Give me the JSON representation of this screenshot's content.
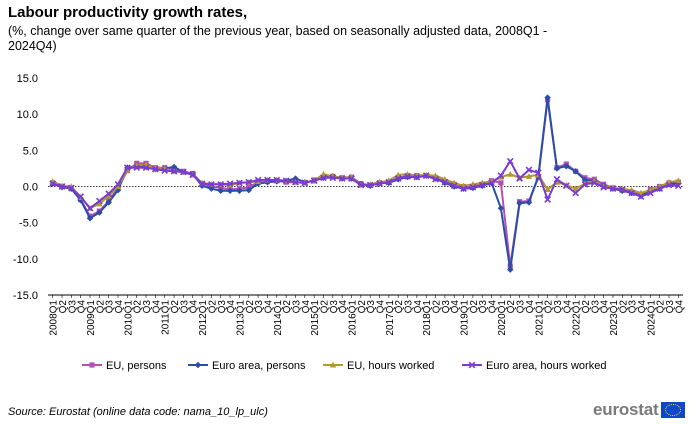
{
  "header": {
    "title": "Labour productivity growth rates,",
    "subtitle": "(%, change over same quarter of the previous year, based on seasonally adjusted data, 2008Q1 - 2024Q4)"
  },
  "footer": {
    "source_label": "Source:",
    "source_text": " Eurostat (online data code: nama_10_lp_ulc)",
    "logo_text": "eurostat"
  },
  "chart_data": {
    "type": "line",
    "title": "Labour productivity growth rates",
    "ylabel": "%",
    "ylim": [
      -15,
      15
    ],
    "yticks": [
      15.0,
      10.0,
      5.0,
      0.0,
      -5.0,
      -10.0,
      -15.0
    ],
    "ytick_labels": [
      "15.0",
      "10.0",
      "5.0",
      "0.0",
      "-5.0",
      "-10.0",
      "-15.0"
    ],
    "grid": false,
    "legend_position": "bottom",
    "categories": [
      "2008Q1",
      "2008Q2",
      "2008Q3",
      "2008Q4",
      "2009Q1",
      "2009Q2",
      "2009Q3",
      "2009Q4",
      "2010Q1",
      "2010Q2",
      "2010Q3",
      "2010Q4",
      "2011Q1",
      "2011Q2",
      "2011Q3",
      "2011Q4",
      "2012Q1",
      "2012Q2",
      "2012Q3",
      "2012Q4",
      "2013Q1",
      "2013Q2",
      "2013Q3",
      "2013Q4",
      "2014Q1",
      "2014Q2",
      "2014Q3",
      "2014Q4",
      "2015Q1",
      "2015Q2",
      "2015Q3",
      "2015Q4",
      "2016Q1",
      "2016Q2",
      "2016Q3",
      "2016Q4",
      "2017Q1",
      "2017Q2",
      "2017Q3",
      "2017Q4",
      "2018Q1",
      "2018Q2",
      "2018Q3",
      "2018Q4",
      "2019Q1",
      "2019Q2",
      "2019Q3",
      "2019Q4",
      "2020Q1",
      "2020Q2",
      "2020Q3",
      "2020Q4",
      "2021Q1",
      "2021Q2",
      "2021Q3",
      "2021Q4",
      "2022Q1",
      "2022Q2",
      "2022Q3",
      "2022Q4",
      "2023Q1",
      "2023Q2",
      "2023Q3",
      "2023Q4",
      "2024Q1",
      "2024Q2",
      "2024Q3",
      "2024Q4"
    ],
    "tick_labels": [
      "2008Q1",
      "Q2",
      "Q3",
      "Q4",
      "2009Q1",
      "Q2",
      "Q3",
      "Q4",
      "2010Q1",
      "Q2",
      "Q3",
      "Q4",
      "2011Q1",
      "Q2",
      "Q3",
      "Q4",
      "2012Q1",
      "Q2",
      "Q3",
      "Q4",
      "2013Q1",
      "Q2",
      "Q3",
      "Q4",
      "2014Q1",
      "Q2",
      "Q3",
      "Q4",
      "2015Q1",
      "Q2",
      "Q3",
      "Q4",
      "2016Q1",
      "Q2",
      "Q3",
      "Q4",
      "2017Q1",
      "Q2",
      "Q3",
      "Q4",
      "2018Q1",
      "Q2",
      "Q3",
      "Q4",
      "2019Q1",
      "Q2",
      "Q3",
      "Q4",
      "2020Q1",
      "Q2",
      "Q3",
      "Q4",
      "2021Q1",
      "Q2",
      "Q3",
      "Q4",
      "2022Q1",
      "Q2",
      "Q3",
      "Q4",
      "2023Q1",
      "Q2",
      "Q3",
      "Q4",
      "2024Q1",
      "Q2",
      "Q3",
      "Q4"
    ],
    "series": [
      {
        "name": "EU, persons",
        "color": "#b34fb5",
        "marker": "square",
        "values": [
          0.5,
          0.0,
          -0.3,
          -1.8,
          -4.1,
          -3.4,
          -2.0,
          -0.2,
          2.2,
          3.2,
          3.2,
          2.6,
          2.6,
          2.5,
          2.1,
          1.8,
          0.4,
          0.0,
          -0.2,
          -0.4,
          -0.3,
          -0.1,
          0.6,
          0.7,
          0.8,
          0.6,
          0.6,
          0.5,
          0.9,
          1.3,
          1.4,
          1.2,
          1.3,
          0.4,
          0.2,
          0.5,
          0.6,
          1.2,
          1.5,
          1.5,
          1.5,
          1.2,
          0.7,
          0.3,
          0.0,
          0.0,
          0.3,
          0.8,
          0.5,
          -11.0,
          -2.1,
          -2.0,
          1.2,
          12.0,
          2.6,
          3.1,
          2.1,
          1.2,
          1.0,
          0.3,
          -0.2,
          -0.5,
          -0.8,
          -1.1,
          -0.4,
          0.0,
          0.5,
          0.6
        ]
      },
      {
        "name": "Euro area, persons",
        "color": "#2a4ea8",
        "marker": "diamond",
        "values": [
          0.4,
          -0.1,
          -0.3,
          -1.9,
          -4.4,
          -3.6,
          -2.2,
          -0.5,
          2.6,
          2.8,
          2.7,
          2.4,
          2.5,
          2.7,
          2.0,
          1.7,
          0.1,
          -0.3,
          -0.6,
          -0.6,
          -0.6,
          -0.5,
          0.4,
          0.6,
          0.7,
          0.8,
          1.1,
          0.6,
          0.8,
          1.2,
          1.4,
          1.1,
          1.1,
          0.3,
          0.1,
          0.5,
          0.5,
          1.0,
          1.3,
          1.3,
          1.5,
          1.1,
          0.5,
          0.0,
          -0.3,
          -0.2,
          0.1,
          0.5,
          -3.0,
          -11.5,
          -2.3,
          -2.2,
          1.4,
          12.3,
          2.5,
          2.8,
          2.1,
          0.9,
          0.8,
          0.1,
          -0.3,
          -0.6,
          -0.9,
          -1.3,
          -0.6,
          -0.3,
          0.3,
          0.5
        ]
      },
      {
        "name": "EU, hours worked",
        "color": "#b09a28",
        "marker": "triangle",
        "values": [
          0.7,
          0.1,
          0.0,
          -1.5,
          -3.0,
          -2.4,
          -1.3,
          0.0,
          2.3,
          2.9,
          3.0,
          2.5,
          2.5,
          2.1,
          2.0,
          1.6,
          0.5,
          0.3,
          0.3,
          0.2,
          0.5,
          0.6,
          0.7,
          0.9,
          0.9,
          0.8,
          0.6,
          0.6,
          0.8,
          1.7,
          1.4,
          1.2,
          1.3,
          0.2,
          0.3,
          0.6,
          0.8,
          1.6,
          1.7,
          1.5,
          1.6,
          1.5,
          1.0,
          0.5,
          0.1,
          0.3,
          0.5,
          0.7,
          1.3,
          1.7,
          1.2,
          1.4,
          1.6,
          -0.4,
          0.6,
          0.2,
          -0.3,
          0.4,
          0.8,
          0.0,
          -0.2,
          -0.3,
          -0.5,
          -0.9,
          -0.5,
          0.0,
          0.6,
          0.8
        ]
      },
      {
        "name": "Euro area, hours worked",
        "color": "#7b39d6",
        "marker": "x",
        "values": [
          0.4,
          0.0,
          -0.2,
          -1.4,
          -3.0,
          -2.0,
          -1.0,
          0.3,
          2.6,
          2.6,
          2.6,
          2.4,
          2.2,
          2.1,
          2.0,
          1.6,
          0.4,
          0.3,
          0.3,
          0.4,
          0.5,
          0.6,
          0.9,
          0.9,
          0.9,
          0.8,
          0.6,
          0.5,
          0.8,
          1.2,
          1.2,
          1.1,
          1.1,
          0.2,
          0.2,
          0.4,
          0.6,
          1.1,
          1.4,
          1.3,
          1.5,
          1.0,
          0.6,
          0.1,
          -0.3,
          -0.1,
          0.2,
          0.5,
          1.5,
          3.5,
          1.1,
          2.3,
          1.9,
          -1.8,
          1.0,
          0.1,
          -0.9,
          0.3,
          0.5,
          -0.1,
          -0.3,
          -0.4,
          -0.9,
          -1.4,
          -0.9,
          -0.3,
          0.2,
          0.1
        ]
      }
    ]
  }
}
